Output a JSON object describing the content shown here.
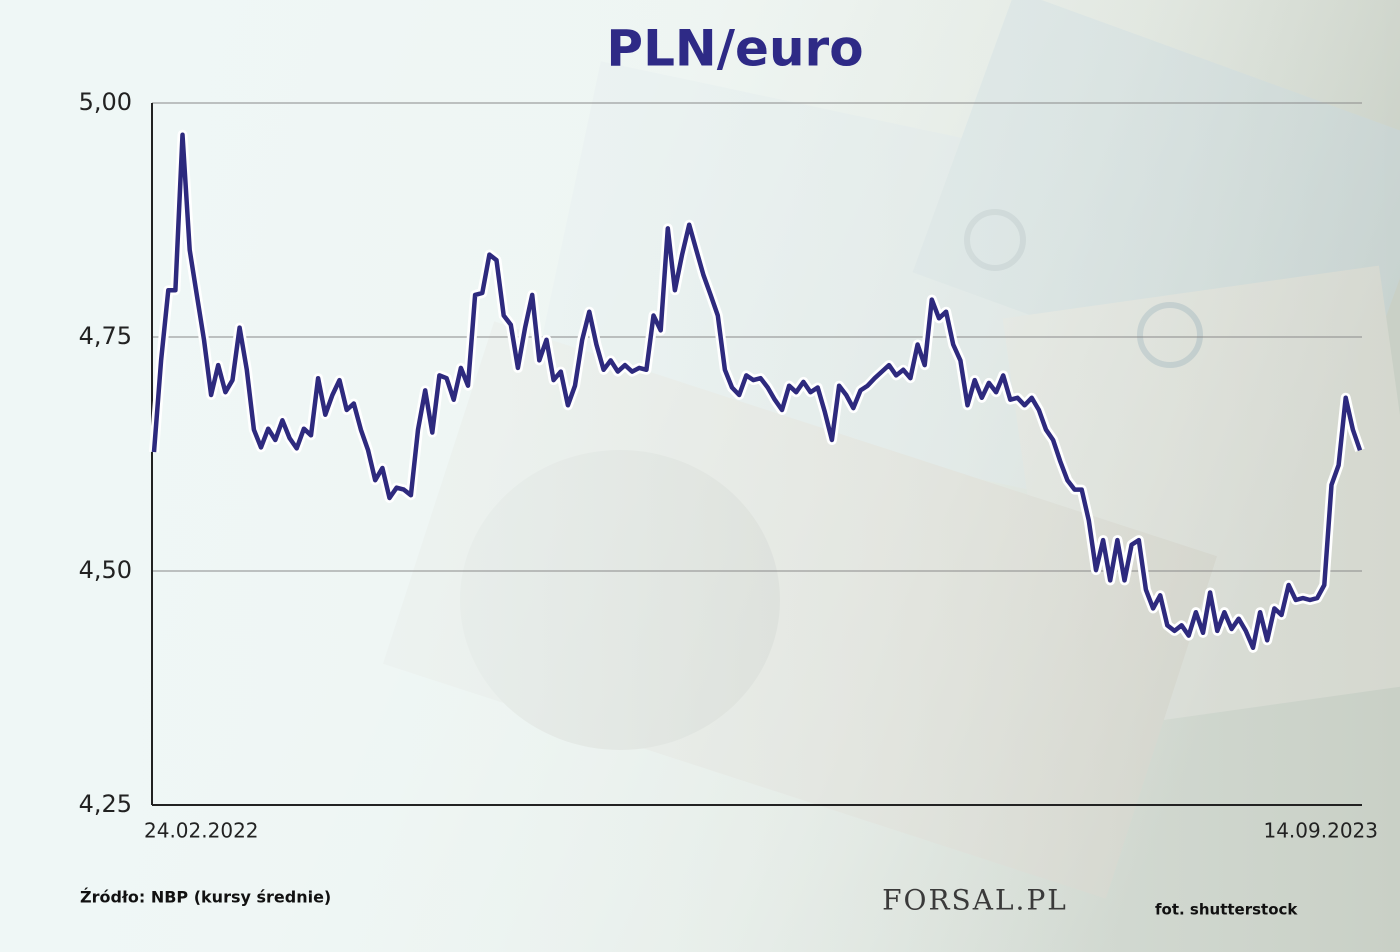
{
  "chart_data": {
    "type": "line",
    "title": "PLN/euro",
    "categories": [
      "24.02.2022",
      null,
      null,
      null,
      null,
      null,
      null,
      null,
      null,
      null,
      null,
      null,
      null,
      null,
      null,
      null,
      null,
      null,
      null,
      null,
      null,
      null,
      null,
      null,
      null,
      null,
      null,
      null,
      null,
      null,
      null,
      null,
      null,
      null,
      null,
      null,
      null,
      null,
      null,
      null,
      null,
      null,
      null,
      null,
      null,
      null,
      null,
      null,
      null,
      null,
      null,
      null,
      null,
      null,
      null,
      null,
      null,
      null,
      null,
      null,
      null,
      null,
      null,
      null,
      null,
      null,
      null,
      null,
      null,
      null,
      null,
      null,
      null,
      null,
      null,
      null,
      null,
      null,
      null,
      null,
      null,
      null,
      null,
      null,
      null,
      null,
      null,
      null,
      null,
      null,
      null,
      null,
      null,
      null,
      null,
      null,
      null,
      null,
      null,
      null,
      null,
      null,
      null,
      null,
      null,
      null,
      null,
      null,
      null,
      null,
      null,
      null,
      null,
      null,
      null,
      null,
      null,
      null,
      null,
      null,
      null,
      null,
      null,
      null,
      null,
      null,
      null,
      null,
      null,
      null,
      null,
      null,
      null,
      null,
      null,
      null,
      null,
      null,
      null,
      null,
      null,
      null,
      null,
      null,
      null,
      null,
      null,
      null,
      null,
      null,
      null,
      null,
      null,
      null,
      null,
      null,
      null,
      null,
      null,
      null,
      null,
      null,
      null,
      null,
      null,
      null,
      null,
      null,
      null,
      "14.09.2023"
    ],
    "values": [
      4.627,
      4.725,
      4.8,
      4.8,
      4.966,
      4.843,
      4.795,
      4.747,
      4.688,
      4.72,
      4.691,
      4.704,
      4.76,
      4.715,
      4.651,
      4.632,
      4.652,
      4.64,
      4.661,
      4.642,
      4.631,
      4.652,
      4.645,
      4.706,
      4.667,
      4.688,
      4.704,
      4.672,
      4.679,
      4.651,
      4.629,
      4.597,
      4.61,
      4.578,
      4.589,
      4.587,
      4.581,
      4.651,
      4.693,
      4.648,
      4.709,
      4.706,
      4.683,
      4.717,
      4.698,
      4.795,
      4.797,
      4.838,
      4.832,
      4.773,
      4.763,
      4.717,
      4.76,
      4.795,
      4.725,
      4.747,
      4.704,
      4.713,
      4.677,
      4.698,
      4.747,
      4.777,
      4.742,
      4.715,
      4.725,
      4.713,
      4.72,
      4.713,
      4.717,
      4.715,
      4.773,
      4.757,
      4.866,
      4.8,
      4.838,
      4.87,
      4.843,
      4.816,
      4.795,
      4.773,
      4.715,
      4.696,
      4.688,
      4.709,
      4.704,
      4.706,
      4.696,
      4.683,
      4.672,
      4.698,
      4.691,
      4.702,
      4.691,
      4.696,
      4.67,
      4.64,
      4.698,
      4.688,
      4.674,
      4.693,
      4.698,
      4.706,
      4.713,
      4.72,
      4.709,
      4.715,
      4.706,
      4.742,
      4.72,
      4.79,
      4.77,
      4.777,
      4.742,
      4.725,
      4.677,
      4.704,
      4.685,
      4.701,
      4.691,
      4.709,
      4.683,
      4.685,
      4.677,
      4.685,
      4.672,
      4.651,
      4.64,
      4.617,
      4.597,
      4.587,
      4.587,
      4.554,
      4.501,
      4.533,
      4.49,
      4.533,
      4.49,
      4.528,
      4.533,
      4.48,
      4.46,
      4.474,
      4.442,
      4.436,
      4.442,
      4.431,
      4.456,
      4.434,
      4.477,
      4.436,
      4.456,
      4.438,
      4.449,
      4.436,
      4.418,
      4.456,
      4.426,
      4.46,
      4.453,
      4.485,
      4.469,
      4.471,
      4.469,
      4.471,
      4.485,
      4.592,
      4.613,
      4.685,
      4.651,
      4.629
    ],
    "color": "#2e2a7e",
    "ylim": [
      4.25,
      5.0
    ],
    "yticks": [
      {
        "value": 4.25,
        "label": "4,25"
      },
      {
        "value": 4.5,
        "label": "4,50"
      },
      {
        "value": 4.75,
        "label": "4,75"
      },
      {
        "value": 5.0,
        "label": "5,00"
      }
    ],
    "grid": true,
    "source": "Źródło: NBP (kursy średnie)",
    "logo": "FORSAL.PL",
    "photo_credit": "fot. shutterstock"
  }
}
